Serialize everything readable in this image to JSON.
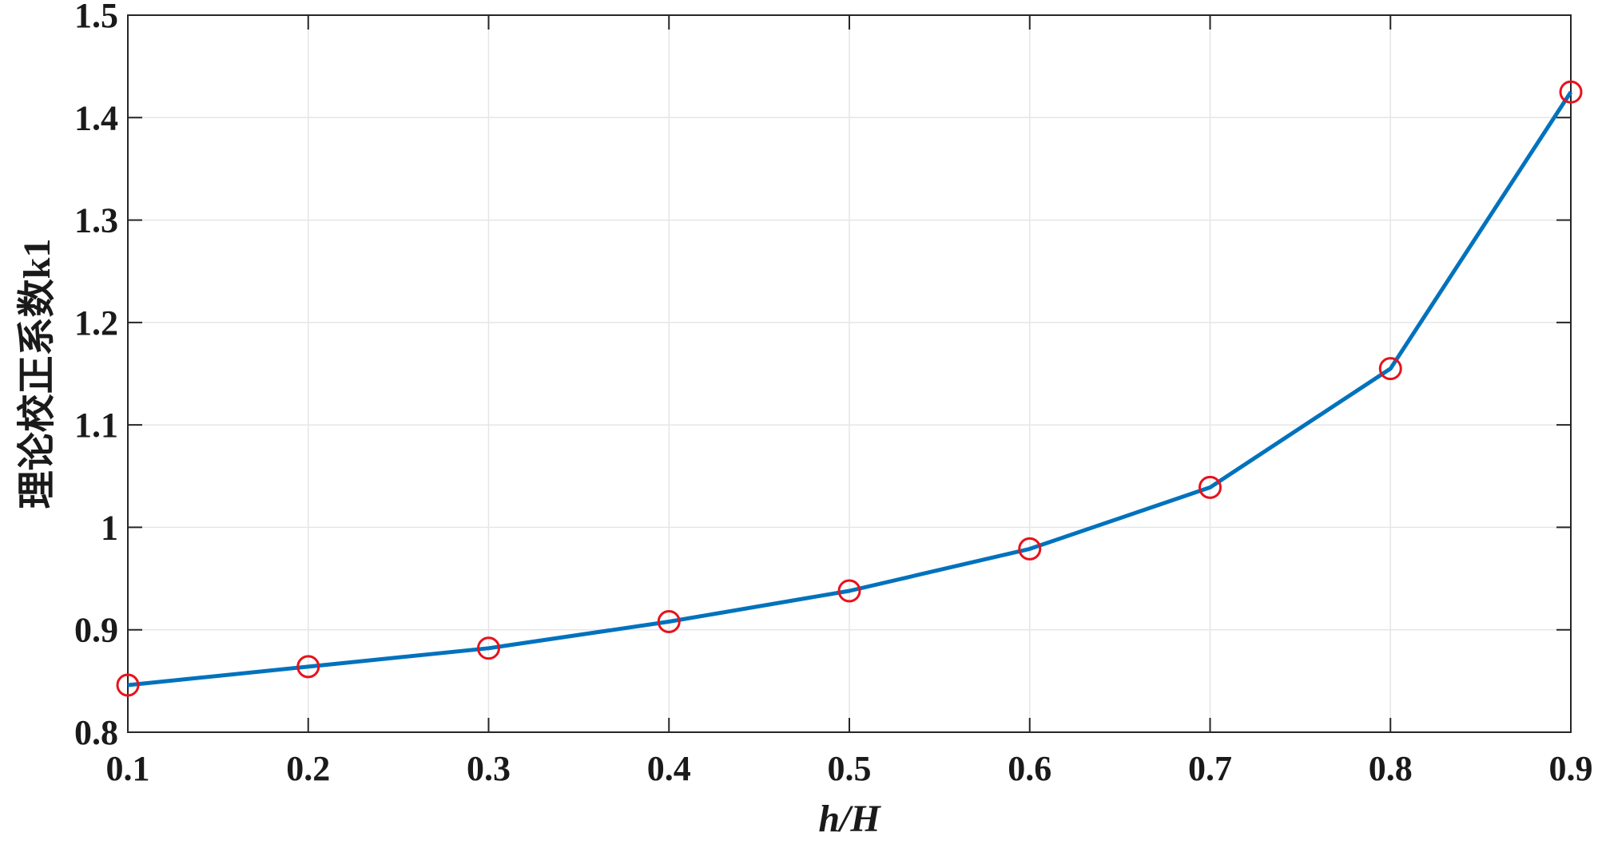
{
  "chart_data": {
    "type": "line",
    "title": "",
    "xlabel": "h/H",
    "ylabel": "理论校正系数k1",
    "xlim": [
      0.1,
      0.9
    ],
    "ylim": [
      0.8,
      1.5
    ],
    "xticks": [
      0.1,
      0.2,
      0.3,
      0.4,
      0.5,
      0.6,
      0.7,
      0.8,
      0.9
    ],
    "xtick_labels": [
      "0.1",
      "0.2",
      "0.3",
      "0.4",
      "0.5",
      "0.6",
      "0.7",
      "0.8",
      "0.9"
    ],
    "yticks": [
      0.8,
      0.9,
      1.0,
      1.1,
      1.2,
      1.3,
      1.4,
      1.5
    ],
    "ytick_labels": [
      "0.8",
      "0.9",
      "1",
      "1.1",
      "1.2",
      "1.3",
      "1.4",
      "1.5"
    ],
    "grid": true,
    "series": [
      {
        "name": "k1",
        "line_color": "#0072bd",
        "marker": "circle",
        "marker_color": "#e8121b",
        "x": [
          0.1,
          0.2,
          0.3,
          0.4,
          0.5,
          0.6,
          0.7,
          0.8,
          0.9
        ],
        "y": [
          0.846,
          0.864,
          0.882,
          0.908,
          0.938,
          0.979,
          1.039,
          1.155,
          1.425
        ]
      }
    ]
  }
}
